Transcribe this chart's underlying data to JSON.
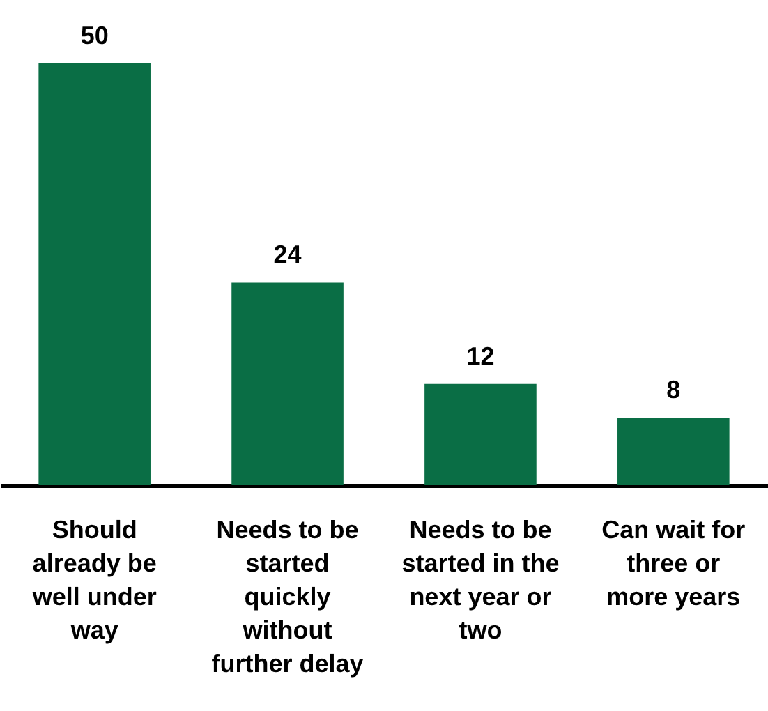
{
  "chart_data": {
    "type": "bar",
    "categories": [
      "Should\nalready be\nwell under\nway",
      "Needs to be\nstarted\nquickly\nwithout\nfurther delay",
      "Needs to be\nstarted in the\nnext year or\ntwo",
      "Can wait for\nthree or\nmore years"
    ],
    "values": [
      50,
      24,
      12,
      8
    ],
    "color": "#0a6e45",
    "data_labels": true,
    "grid": false
  }
}
